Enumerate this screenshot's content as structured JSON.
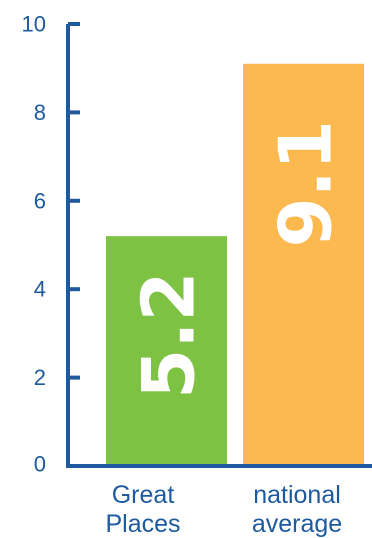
{
  "chart_data": {
    "type": "bar",
    "categories": [
      "Great Places",
      "national average"
    ],
    "category_lines": [
      [
        "Great",
        "Places"
      ],
      [
        "national",
        "average"
      ]
    ],
    "values": [
      5.2,
      9.1
    ],
    "value_labels": [
      "5.2",
      "9.1"
    ],
    "yticks": [
      "0",
      "2",
      "4",
      "6",
      "8",
      "10"
    ],
    "ylim": [
      0,
      10
    ],
    "bar_colors": [
      "#7dc243",
      "#fbb94f"
    ],
    "axis_color": "#1d5aa0",
    "label_color": "#1d5aa0",
    "grid": false,
    "legend": "none"
  }
}
